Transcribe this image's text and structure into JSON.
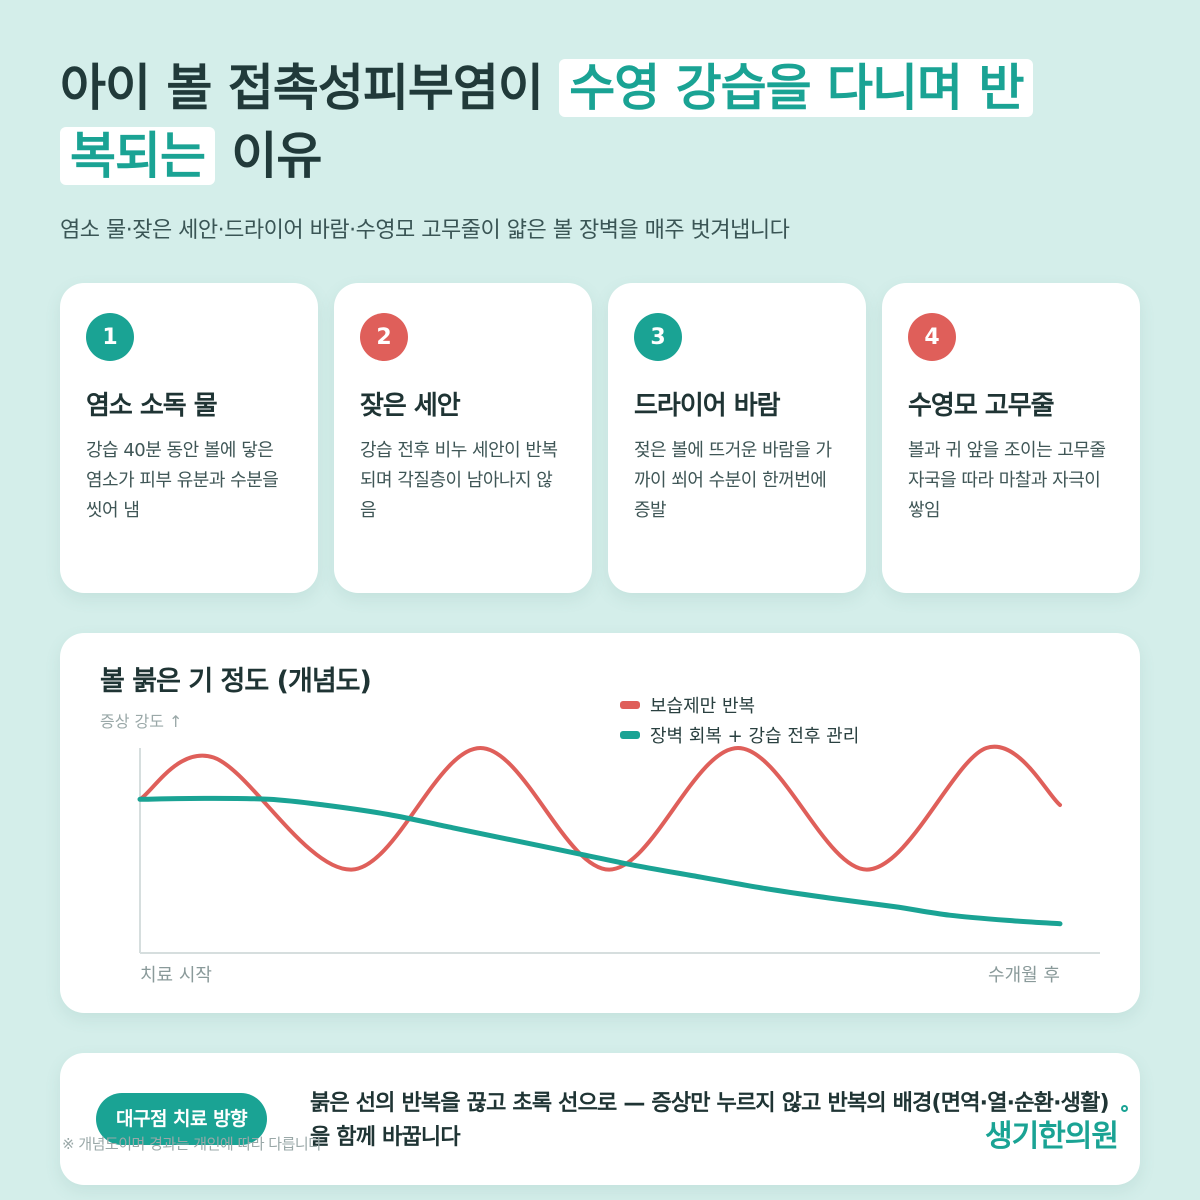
{
  "header": {
    "title_part1": "아이 볼 접촉성피부염이 ",
    "title_highlight1": "수영 강습을 다니며 반",
    "title_highlight2": "복되는",
    "title_part2": " 이유",
    "subtitle": "염소 물·잦은 세안·드라이어 바람·수영모 고무줄이 얇은 볼 장벽을 매주 벗겨냅니다"
  },
  "cards": [
    {
      "number": "1",
      "title": "염소 소독 물",
      "description": "강습 40분 동안 볼에 닿은 염소가 피부 유분과 수분을 씻어 냄",
      "color": "#1aa394"
    },
    {
      "number": "2",
      "title": "잦은 세안",
      "description": "강습 전후 비누 세안이 반복되며 각질층이 남아나지 않음",
      "color": "#df5f5a"
    },
    {
      "number": "3",
      "title": "드라이어 바람",
      "description": "젖은 볼에 뜨거운 바람을 가까이 쐬어 수분이 한꺼번에 증발",
      "color": "#1aa394"
    },
    {
      "number": "4",
      "title": "수영모 고무줄",
      "description": "볼과 귀 앞을 조이는 고무줄 자국을 따라 마찰과 자극이 쌓임",
      "color": "#df5f5a"
    }
  ],
  "chart_data": {
    "type": "line",
    "title": "볼 붉은 기 정도 (개념도)",
    "ylabel": "증상 강도 ↑",
    "x_start_label": "치료 시작",
    "x_end_label": "수개월 후",
    "xlim": [
      0,
      100
    ],
    "ylim": [
      0,
      100
    ],
    "legend_position": "top-right",
    "grid": false,
    "series": [
      {
        "name": "보습제만 반복",
        "color": "#df5f5a",
        "shape": "oscillating",
        "x": [
          0,
          8,
          23,
          37,
          51,
          65,
          79,
          92,
          100
        ],
        "y": [
          73,
          95,
          36,
          100,
          36,
          100,
          36,
          100,
          70
        ]
      },
      {
        "name": "장벽 회복 + 강습 전후 관리",
        "color": "#1aa394",
        "shape": "decreasing",
        "x": [
          0,
          7,
          14,
          20,
          27,
          34,
          41,
          48,
          54,
          61,
          68,
          75,
          82,
          88,
          95,
          100
        ],
        "y": [
          73,
          73.5,
          73,
          70,
          65,
          58,
          51,
          44,
          38,
          32,
          26,
          21,
          16.5,
          12,
          9,
          7.5
        ]
      }
    ]
  },
  "footer": {
    "badge": "대구점 치료 방향",
    "message": "붉은 선의 반복을 끊고 초록 선으로 — 증상만 누르지 않고 반복의 배경(면역·열·순환·생활)을 함께 바꿉니다",
    "note": "※ 개념도이며 경과는 개인에 따라 다릅니다",
    "logo": "생기한의원"
  }
}
